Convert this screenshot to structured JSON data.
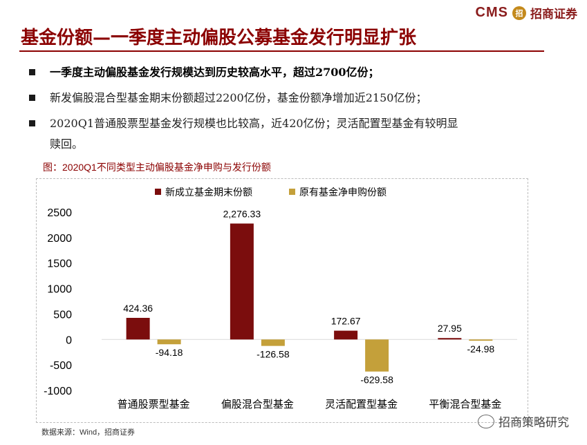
{
  "header": {
    "logo_text": "CMS",
    "logo_mark": "招",
    "logo_cn": "招商证券",
    "title": "基金份额—一季度主动偏股公募基金发行明显扩张"
  },
  "bullets": [
    {
      "text": "一季度主动偏股基金发行规模达到历史较高水平，超过2700亿份；",
      "bold": true
    },
    {
      "text": "新发偏股混合型基金期末份额超过2200亿份，基金份额净增加近2150亿份；",
      "bold": false
    },
    {
      "text": "2020Q1普通股票型基金发行规模也比较高，近420亿份；灵活配置型基金有较明显",
      "bold": false
    }
  ],
  "bullet_continuation": "赎回。",
  "figure_caption": "图：2020Q1不同类型主动偏股基金净申购与发行份额",
  "chart_data": {
    "type": "bar",
    "categories": [
      "普通股票型基金",
      "偏股混合型基金",
      "灵活配置型基金",
      "平衡混合型基金"
    ],
    "series": [
      {
        "name": "新成立基金期末份额",
        "values": [
          424.36,
          2276.33,
          172.67,
          27.95
        ],
        "labels": [
          "424.36",
          "2,276.33",
          "172.67",
          "27.95"
        ],
        "color": "#7b0d0d"
      },
      {
        "name": "原有基金净申购份额",
        "values": [
          -94.18,
          -126.58,
          -629.58,
          -24.98
        ],
        "labels": [
          "-94.18",
          "-126.58",
          "-629.58",
          "-24.98"
        ],
        "color": "#c4a03a"
      }
    ],
    "ylim": [
      -1000,
      2500
    ],
    "yticks": [
      "-1000",
      "-500",
      "0",
      "500",
      "1000",
      "1500",
      "2000",
      "2500"
    ],
    "legend_position": "top",
    "grid": false
  },
  "source": "数据来源：Wind，招商证券",
  "watermark": "招商策略研究"
}
